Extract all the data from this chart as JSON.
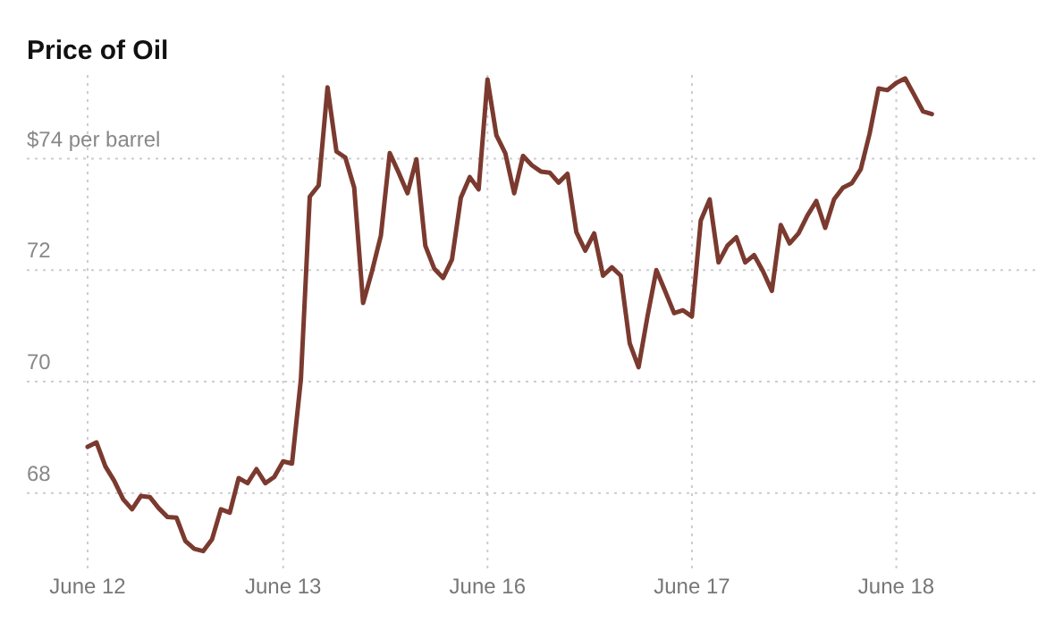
{
  "chart_data": {
    "type": "line",
    "title": "Price of Oil",
    "categories": [
      "June 12",
      null,
      null,
      null,
      null,
      null,
      null,
      null,
      null,
      null,
      null,
      null,
      null,
      null,
      null,
      null,
      null,
      null,
      null,
      null,
      null,
      null,
      "June 13",
      null,
      null,
      null,
      null,
      null,
      null,
      null,
      null,
      null,
      null,
      null,
      null,
      null,
      null,
      null,
      null,
      null,
      null,
      null,
      null,
      null,
      null,
      "June 16",
      null,
      null,
      null,
      null,
      null,
      null,
      null,
      null,
      null,
      null,
      null,
      null,
      null,
      null,
      null,
      null,
      null,
      null,
      null,
      null,
      null,
      null,
      "June 17",
      null,
      null,
      null,
      null,
      null,
      null,
      null,
      null,
      null,
      null,
      null,
      null,
      null,
      null,
      null,
      null,
      null,
      null,
      null,
      null,
      null,
      null,
      "June 18",
      null,
      null,
      null,
      null
    ],
    "series": [
      {
        "color": "#7b3a2f",
        "values": [
          68.83,
          68.91,
          68.48,
          68.22,
          67.89,
          67.71,
          67.95,
          67.93,
          67.73,
          67.57,
          67.56,
          67.14,
          67.0,
          66.96,
          67.17,
          67.71,
          67.65,
          68.27,
          68.18,
          68.43,
          68.18,
          68.29,
          68.57,
          68.53,
          70.04,
          73.32,
          73.52,
          75.28,
          74.13,
          74.02,
          73.48,
          71.41,
          71.98,
          72.62,
          74.1,
          73.75,
          73.38,
          73.99,
          72.44,
          72.03,
          71.86,
          72.19,
          73.3,
          73.67,
          73.45,
          75.42,
          74.42,
          74.1,
          73.38,
          74.05,
          73.88,
          73.77,
          73.75,
          73.57,
          73.73,
          72.68,
          72.35,
          72.66,
          71.9,
          72.05,
          71.9,
          70.69,
          70.26,
          71.17,
          72.0,
          71.62,
          71.23,
          71.28,
          71.17,
          72.89,
          73.27,
          72.14,
          72.44,
          72.59,
          72.14,
          72.27,
          71.98,
          71.63,
          72.81,
          72.48,
          72.66,
          72.98,
          73.24,
          72.76,
          73.27,
          73.48,
          73.56,
          73.81,
          74.45,
          75.26,
          75.23,
          75.36,
          75.44,
          75.15,
          74.85,
          74.8
        ]
      }
    ],
    "ylim": [
      66.65,
      75.5
    ],
    "yticks": [
      68,
      70,
      72,
      {
        "value": 74,
        "label": "$74 per barrel"
      }
    ],
    "grid": true
  }
}
